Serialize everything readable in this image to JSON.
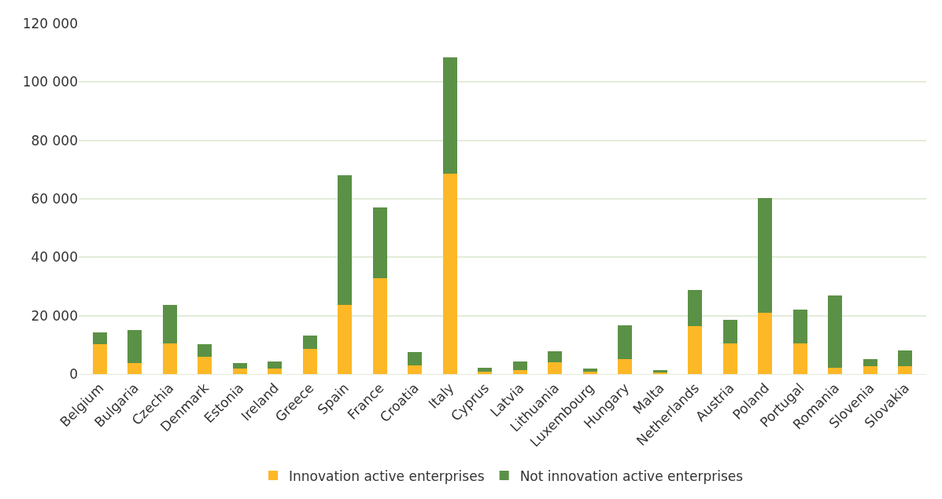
{
  "chart_data": {
    "type": "bar",
    "stacked": true,
    "categories": [
      "Belgium",
      "Bulgaria",
      "Czechia",
      "Denmark",
      "Estonia",
      "Ireland",
      "Greece",
      "Spain",
      "France",
      "Croatia",
      "Italy",
      "Cyprus",
      "Latvia",
      "Lithuania",
      "Luxembourg",
      "Hungary",
      "Malta",
      "Netherlands",
      "Austria",
      "Poland",
      "Portugal",
      "Romania",
      "Slovenia",
      "Slovakia"
    ],
    "series": [
      {
        "name": "Innovation active enterprises",
        "color": "#fdb827",
        "values": [
          10100,
          3900,
          10400,
          5800,
          2000,
          2000,
          8700,
          23800,
          32800,
          3000,
          68500,
          800,
          1400,
          4100,
          900,
          5000,
          600,
          16300,
          10500,
          21000,
          10500,
          2200,
          2800,
          2800
        ]
      },
      {
        "name": "Not innovation active enterprises",
        "color": "#5b9146",
        "values": [
          4200,
          11100,
          13400,
          4400,
          1800,
          2200,
          4600,
          44300,
          24300,
          4500,
          40000,
          1400,
          3000,
          3800,
          1100,
          11700,
          800,
          12600,
          8000,
          39400,
          11600,
          24700,
          2300,
          5400
        ]
      }
    ],
    "ylim": [
      0,
      120000
    ],
    "yticks": [
      {
        "value": 0,
        "label": "0"
      },
      {
        "value": 20000,
        "label": "20 000"
      },
      {
        "value": 40000,
        "label": "40 000"
      },
      {
        "value": 60000,
        "label": "60 000"
      },
      {
        "value": 80000,
        "label": "80 000"
      },
      {
        "value": 100000,
        "label": "100 000"
      },
      {
        "value": 120000,
        "label": "120 000"
      }
    ],
    "grid": "y",
    "legend": "bottom"
  }
}
